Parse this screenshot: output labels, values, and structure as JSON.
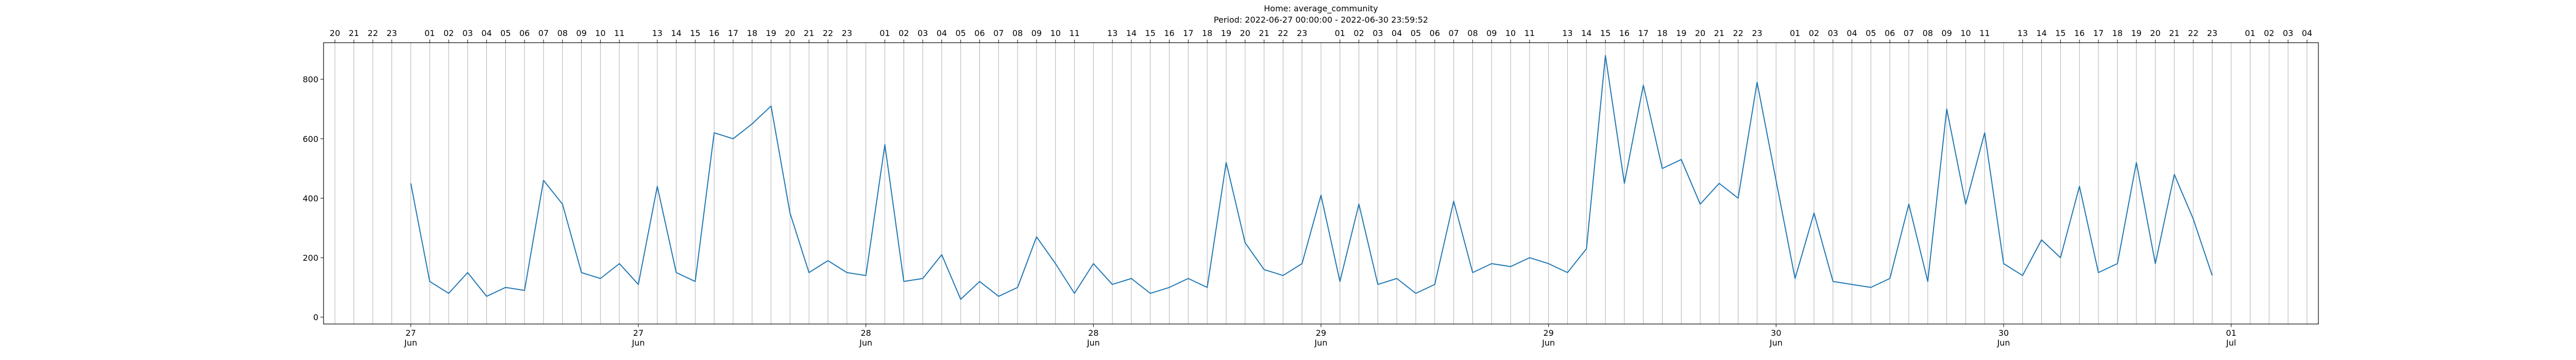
{
  "chart_data": {
    "type": "line",
    "title": "Home: average_community",
    "subtitle": "Period: 2022-06-27 00:00:00 - 2022-06-30 23:59:52",
    "x": [
      "2022-06-27 00:00",
      "2022-06-27 01:00",
      "2022-06-27 02:00",
      "2022-06-27 03:00",
      "2022-06-27 04:00",
      "2022-06-27 05:00",
      "2022-06-27 06:00",
      "2022-06-27 07:00",
      "2022-06-27 08:00",
      "2022-06-27 09:00",
      "2022-06-27 10:00",
      "2022-06-27 11:00",
      "2022-06-27 12:00",
      "2022-06-27 13:00",
      "2022-06-27 14:00",
      "2022-06-27 15:00",
      "2022-06-27 16:00",
      "2022-06-27 17:00",
      "2022-06-27 18:00",
      "2022-06-27 19:00",
      "2022-06-27 20:00",
      "2022-06-27 21:00",
      "2022-06-27 22:00",
      "2022-06-27 23:00",
      "2022-06-28 00:00",
      "2022-06-28 01:00",
      "2022-06-28 02:00",
      "2022-06-28 03:00",
      "2022-06-28 04:00",
      "2022-06-28 05:00",
      "2022-06-28 06:00",
      "2022-06-28 07:00",
      "2022-06-28 08:00",
      "2022-06-28 09:00",
      "2022-06-28 10:00",
      "2022-06-28 11:00",
      "2022-06-28 12:00",
      "2022-06-28 13:00",
      "2022-06-28 14:00",
      "2022-06-28 15:00",
      "2022-06-28 16:00",
      "2022-06-28 17:00",
      "2022-06-28 18:00",
      "2022-06-28 19:00",
      "2022-06-28 20:00",
      "2022-06-28 21:00",
      "2022-06-28 22:00",
      "2022-06-28 23:00",
      "2022-06-29 00:00",
      "2022-06-29 01:00",
      "2022-06-29 02:00",
      "2022-06-29 03:00",
      "2022-06-29 04:00",
      "2022-06-29 05:00",
      "2022-06-29 06:00",
      "2022-06-29 07:00",
      "2022-06-29 08:00",
      "2022-06-29 09:00",
      "2022-06-29 10:00",
      "2022-06-29 11:00",
      "2022-06-29 12:00",
      "2022-06-29 13:00",
      "2022-06-29 14:00",
      "2022-06-29 15:00",
      "2022-06-29 16:00",
      "2022-06-29 17:00",
      "2022-06-29 18:00",
      "2022-06-29 19:00",
      "2022-06-29 20:00",
      "2022-06-29 21:00",
      "2022-06-29 22:00",
      "2022-06-29 23:00",
      "2022-06-30 00:00",
      "2022-06-30 01:00",
      "2022-06-30 02:00",
      "2022-06-30 03:00",
      "2022-06-30 04:00",
      "2022-06-30 05:00",
      "2022-06-30 06:00",
      "2022-06-30 07:00",
      "2022-06-30 08:00",
      "2022-06-30 09:00",
      "2022-06-30 10:00",
      "2022-06-30 11:00",
      "2022-06-30 12:00",
      "2022-06-30 13:00",
      "2022-06-30 14:00",
      "2022-06-30 15:00",
      "2022-06-30 16:00",
      "2022-06-30 17:00",
      "2022-06-30 18:00",
      "2022-06-30 19:00",
      "2022-06-30 20:00",
      "2022-06-30 21:00",
      "2022-06-30 22:00",
      "2022-06-30 23:00"
    ],
    "series": [
      {
        "color": "#1f77b4",
        "values": [
          450,
          120,
          80,
          150,
          70,
          100,
          90,
          460,
          380,
          150,
          130,
          180,
          110,
          440,
          150,
          120,
          620,
          600,
          650,
          710,
          350,
          150,
          190,
          150,
          140,
          580,
          120,
          130,
          210,
          60,
          120,
          70,
          100,
          270,
          180,
          80,
          180,
          110,
          130,
          80,
          100,
          130,
          100,
          520,
          250,
          160,
          140,
          180,
          410,
          120,
          380,
          110,
          130,
          80,
          110,
          390,
          150,
          180,
          170,
          200,
          180,
          150,
          230,
          880,
          450,
          780,
          500,
          530,
          380,
          450,
          400,
          790,
          460,
          130,
          350,
          120,
          110,
          100,
          130,
          380,
          120,
          700,
          380,
          620,
          180,
          140,
          260,
          200,
          440,
          150,
          180,
          520,
          180,
          480,
          330,
          140
        ]
      }
    ],
    "xlim": [
      "2022-06-26 19:24",
      "2022-07-01 04:36"
    ],
    "ylim": [
      -23,
      923
    ],
    "yticks": [
      0,
      200,
      400,
      600,
      800
    ],
    "xticks_top": [
      {
        "value": "2022-06-26 20:00",
        "label": "20"
      },
      {
        "value": "2022-06-26 21:00",
        "label": "21"
      },
      {
        "value": "2022-06-26 22:00",
        "label": "22"
      },
      {
        "value": "2022-06-26 23:00",
        "label": "23"
      },
      {
        "value": "2022-06-27 01:00",
        "label": "01"
      },
      {
        "value": "2022-06-27 02:00",
        "label": "02"
      },
      {
        "value": "2022-06-27 03:00",
        "label": "03"
      },
      {
        "value": "2022-06-27 04:00",
        "label": "04"
      },
      {
        "value": "2022-06-27 05:00",
        "label": "05"
      },
      {
        "value": "2022-06-27 06:00",
        "label": "06"
      },
      {
        "value": "2022-06-27 07:00",
        "label": "07"
      },
      {
        "value": "2022-06-27 08:00",
        "label": "08"
      },
      {
        "value": "2022-06-27 09:00",
        "label": "09"
      },
      {
        "value": "2022-06-27 10:00",
        "label": "10"
      },
      {
        "value": "2022-06-27 11:00",
        "label": "11"
      },
      {
        "value": "2022-06-27 13:00",
        "label": "13"
      },
      {
        "value": "2022-06-27 14:00",
        "label": "14"
      },
      {
        "value": "2022-06-27 15:00",
        "label": "15"
      },
      {
        "value": "2022-06-27 16:00",
        "label": "16"
      },
      {
        "value": "2022-06-27 17:00",
        "label": "17"
      },
      {
        "value": "2022-06-27 18:00",
        "label": "18"
      },
      {
        "value": "2022-06-27 19:00",
        "label": "19"
      },
      {
        "value": "2022-06-27 20:00",
        "label": "20"
      },
      {
        "value": "2022-06-27 21:00",
        "label": "21"
      },
      {
        "value": "2022-06-27 22:00",
        "label": "22"
      },
      {
        "value": "2022-06-27 23:00",
        "label": "23"
      },
      {
        "value": "2022-06-28 01:00",
        "label": "01"
      },
      {
        "value": "2022-06-28 02:00",
        "label": "02"
      },
      {
        "value": "2022-06-28 03:00",
        "label": "03"
      },
      {
        "value": "2022-06-28 04:00",
        "label": "04"
      },
      {
        "value": "2022-06-28 05:00",
        "label": "05"
      },
      {
        "value": "2022-06-28 06:00",
        "label": "06"
      },
      {
        "value": "2022-06-28 07:00",
        "label": "07"
      },
      {
        "value": "2022-06-28 08:00",
        "label": "08"
      },
      {
        "value": "2022-06-28 09:00",
        "label": "09"
      },
      {
        "value": "2022-06-28 10:00",
        "label": "10"
      },
      {
        "value": "2022-06-28 11:00",
        "label": "11"
      },
      {
        "value": "2022-06-28 13:00",
        "label": "13"
      },
      {
        "value": "2022-06-28 14:00",
        "label": "14"
      },
      {
        "value": "2022-06-28 15:00",
        "label": "15"
      },
      {
        "value": "2022-06-28 16:00",
        "label": "16"
      },
      {
        "value": "2022-06-28 17:00",
        "label": "17"
      },
      {
        "value": "2022-06-28 18:00",
        "label": "18"
      },
      {
        "value": "2022-06-28 19:00",
        "label": "19"
      },
      {
        "value": "2022-06-28 20:00",
        "label": "20"
      },
      {
        "value": "2022-06-28 21:00",
        "label": "21"
      },
      {
        "value": "2022-06-28 22:00",
        "label": "22"
      },
      {
        "value": "2022-06-28 23:00",
        "label": "23"
      },
      {
        "value": "2022-06-29 01:00",
        "label": "01"
      },
      {
        "value": "2022-06-29 02:00",
        "label": "02"
      },
      {
        "value": "2022-06-29 03:00",
        "label": "03"
      },
      {
        "value": "2022-06-29 04:00",
        "label": "04"
      },
      {
        "value": "2022-06-29 05:00",
        "label": "05"
      },
      {
        "value": "2022-06-29 06:00",
        "label": "06"
      },
      {
        "value": "2022-06-29 07:00",
        "label": "07"
      },
      {
        "value": "2022-06-29 08:00",
        "label": "08"
      },
      {
        "value": "2022-06-29 09:00",
        "label": "09"
      },
      {
        "value": "2022-06-29 10:00",
        "label": "10"
      },
      {
        "value": "2022-06-29 11:00",
        "label": "11"
      },
      {
        "value": "2022-06-29 13:00",
        "label": "13"
      },
      {
        "value": "2022-06-29 14:00",
        "label": "14"
      },
      {
        "value": "2022-06-29 15:00",
        "label": "15"
      },
      {
        "value": "2022-06-29 16:00",
        "label": "16"
      },
      {
        "value": "2022-06-29 17:00",
        "label": "17"
      },
      {
        "value": "2022-06-29 18:00",
        "label": "18"
      },
      {
        "value": "2022-06-29 19:00",
        "label": "19"
      },
      {
        "value": "2022-06-29 20:00",
        "label": "20"
      },
      {
        "value": "2022-06-29 21:00",
        "label": "21"
      },
      {
        "value": "2022-06-29 22:00",
        "label": "22"
      },
      {
        "value": "2022-06-29 23:00",
        "label": "23"
      },
      {
        "value": "2022-06-30 01:00",
        "label": "01"
      },
      {
        "value": "2022-06-30 02:00",
        "label": "02"
      },
      {
        "value": "2022-06-30 03:00",
        "label": "03"
      },
      {
        "value": "2022-06-30 04:00",
        "label": "04"
      },
      {
        "value": "2022-06-30 05:00",
        "label": "05"
      },
      {
        "value": "2022-06-30 06:00",
        "label": "06"
      },
      {
        "value": "2022-06-30 07:00",
        "label": "07"
      },
      {
        "value": "2022-06-30 08:00",
        "label": "08"
      },
      {
        "value": "2022-06-30 09:00",
        "label": "09"
      },
      {
        "value": "2022-06-30 10:00",
        "label": "10"
      },
      {
        "value": "2022-06-30 11:00",
        "label": "11"
      },
      {
        "value": "2022-06-30 13:00",
        "label": "13"
      },
      {
        "value": "2022-06-30 14:00",
        "label": "14"
      },
      {
        "value": "2022-06-30 15:00",
        "label": "15"
      },
      {
        "value": "2022-06-30 16:00",
        "label": "16"
      },
      {
        "value": "2022-06-30 17:00",
        "label": "17"
      },
      {
        "value": "2022-06-30 18:00",
        "label": "18"
      },
      {
        "value": "2022-06-30 19:00",
        "label": "19"
      },
      {
        "value": "2022-06-30 20:00",
        "label": "20"
      },
      {
        "value": "2022-06-30 21:00",
        "label": "21"
      },
      {
        "value": "2022-06-30 22:00",
        "label": "22"
      },
      {
        "value": "2022-06-30 23:00",
        "label": "23"
      },
      {
        "value": "2022-07-01 01:00",
        "label": "01"
      },
      {
        "value": "2022-07-01 02:00",
        "label": "02"
      },
      {
        "value": "2022-07-01 03:00",
        "label": "03"
      },
      {
        "value": "2022-07-01 04:00",
        "label": "04"
      }
    ],
    "xticks": [
      {
        "value": "2022-06-27 00:00",
        "label": "27\nJun"
      },
      {
        "value": "2022-06-27 12:00",
        "label": "27\nJun"
      },
      {
        "value": "2022-06-28 00:00",
        "label": "28\nJun"
      },
      {
        "value": "2022-06-28 12:00",
        "label": "28\nJun"
      },
      {
        "value": "2022-06-29 00:00",
        "label": "29\nJun"
      },
      {
        "value": "2022-06-29 12:00",
        "label": "29\nJun"
      },
      {
        "value": "2022-06-30 00:00",
        "label": "30\nJun"
      },
      {
        "value": "2022-06-30 12:00",
        "label": "30\nJun"
      },
      {
        "value": "2022-07-01 00:00",
        "label": "01\nJul"
      }
    ],
    "grid": true
  }
}
